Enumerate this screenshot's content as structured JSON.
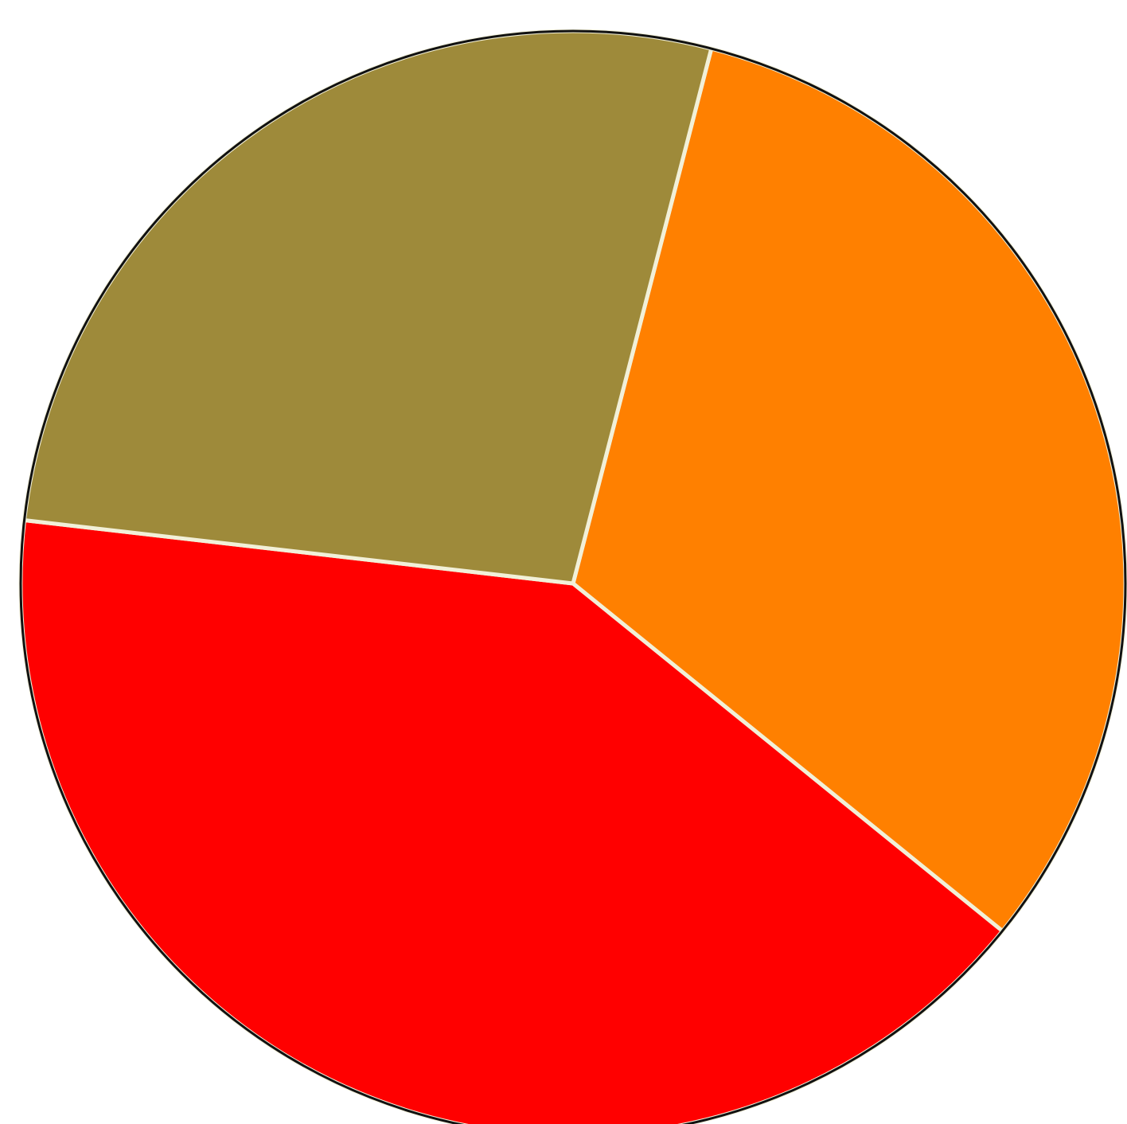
{
  "chart_data": {
    "type": "pie",
    "start_angle_deg": 284.5,
    "direction": "clockwise",
    "slices": [
      {
        "name": "",
        "value": 31.8,
        "color": "#ff8000"
      },
      {
        "name": "",
        "value": 41.0,
        "color": "#ff0000"
      },
      {
        "name": "",
        "value": 27.2,
        "color": "#9e8a3a"
      }
    ],
    "legend": "none",
    "title": ""
  }
}
